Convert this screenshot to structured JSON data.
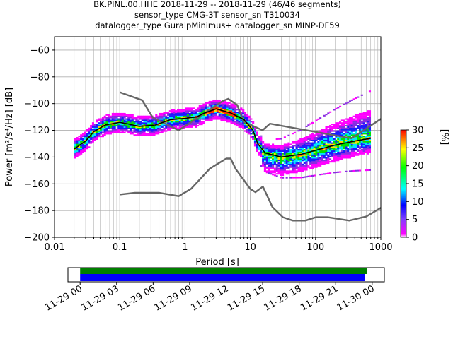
{
  "chart_data": {
    "type": "heatmap",
    "title_lines": [
      "BK.PINL.00.HHE   2018-11-29 -- 2018-11-29  (46/46 segments)",
      "sensor_type CMG-3T sensor_sn T310034",
      "datalogger_type GuralpMinimus+ datalogger_sn MINP-DF59"
    ],
    "xlabel": "Period [s]",
    "ylabel": "Power [m²/s⁴/Hz] [dB]",
    "x_scale": "log",
    "xlim": [
      0.01,
      1000
    ],
    "ylim": [
      -200,
      -50
    ],
    "x_ticks": [
      {
        "v": 0.01,
        "label": "0.01"
      },
      {
        "v": 0.1,
        "label": "0.1"
      },
      {
        "v": 1,
        "label": "1"
      },
      {
        "v": 10,
        "label": "10"
      },
      {
        "v": 100,
        "label": "100"
      },
      {
        "v": 1000,
        "label": "1000"
      }
    ],
    "y_ticks": [
      {
        "v": -60,
        "label": "−60"
      },
      {
        "v": -80,
        "label": "−80"
      },
      {
        "v": -100,
        "label": "−100"
      },
      {
        "v": -120,
        "label": "−120"
      },
      {
        "v": -140,
        "label": "−140"
      },
      {
        "v": -160,
        "label": "−160"
      },
      {
        "v": -180,
        "label": "−180"
      },
      {
        "v": -200,
        "label": "−200"
      }
    ],
    "grid": true,
    "colorbar": {
      "label": "[%]",
      "min": 0,
      "max": 30,
      "ticks": [
        {
          "v": 0,
          "label": "0"
        },
        {
          "v": 5,
          "label": "5"
        },
        {
          "v": 10,
          "label": "10"
        },
        {
          "v": 15,
          "label": "15"
        },
        {
          "v": 20,
          "label": "20"
        },
        {
          "v": 25,
          "label": "25"
        },
        {
          "v": 30,
          "label": "30"
        }
      ]
    },
    "noise_models": {
      "nhnm": [
        [
          0.1,
          -91.5
        ],
        [
          0.22,
          -97.5
        ],
        [
          0.32,
          -110.5
        ],
        [
          0.8,
          -120
        ],
        [
          3.8,
          -98
        ],
        [
          4.6,
          -96.5
        ],
        [
          6.3,
          -101
        ],
        [
          7.9,
          -113.5
        ],
        [
          15.4,
          -120
        ],
        [
          20,
          -115
        ],
        [
          354.8,
          -126
        ],
        [
          1000,
          -111.5
        ]
      ],
      "nlnm": [
        [
          0.1,
          -168
        ],
        [
          0.17,
          -166.7
        ],
        [
          0.4,
          -166.7
        ],
        [
          0.8,
          -169.2
        ],
        [
          1.24,
          -163.7
        ],
        [
          2.4,
          -148.6
        ],
        [
          4.3,
          -141.1
        ],
        [
          5,
          -141.1
        ],
        [
          6,
          -149
        ],
        [
          10,
          -163.8
        ],
        [
          12,
          -166.2
        ],
        [
          15.6,
          -162.1
        ],
        [
          21.9,
          -177.5
        ],
        [
          31.6,
          -185
        ],
        [
          45,
          -187.5
        ],
        [
          70,
          -187.5
        ],
        [
          101,
          -185
        ],
        [
          154,
          -185
        ],
        [
          328,
          -187.5
        ],
        [
          600,
          -184.4
        ],
        [
          1000,
          -178
        ]
      ]
    },
    "mean_curve": [
      [
        0.02,
        -134
      ],
      [
        0.03,
        -128
      ],
      [
        0.04,
        -121
      ],
      [
        0.06,
        -116
      ],
      [
        0.1,
        -114
      ],
      [
        0.2,
        -117
      ],
      [
        0.35,
        -116
      ],
      [
        0.6,
        -112
      ],
      [
        1,
        -111
      ],
      [
        1.5,
        -110
      ],
      [
        2,
        -107
      ],
      [
        3,
        -104
      ],
      [
        5,
        -107
      ],
      [
        8,
        -112
      ],
      [
        11,
        -120
      ],
      [
        13,
        -130
      ],
      [
        17,
        -137
      ],
      [
        30,
        -140
      ],
      [
        60,
        -138
      ],
      [
        100,
        -135
      ],
      [
        200,
        -131
      ],
      [
        400,
        -128
      ],
      [
        700,
        -126
      ]
    ],
    "time_axis": {
      "tick_labels": [
        "11-29 00",
        "11-29 03",
        "11-29 06",
        "11-29 09",
        "11-29 12",
        "11-29 15",
        "11-29 18",
        "11-29 21",
        "11-30 00"
      ],
      "range_hours": [
        -1,
        25
      ],
      "coverage_bars": [
        {
          "color": "#008000",
          "start_h": 0,
          "end_h": 23.6
        },
        {
          "color": "#0000ff",
          "start_h": 0,
          "end_h": 23.4
        }
      ]
    }
  }
}
